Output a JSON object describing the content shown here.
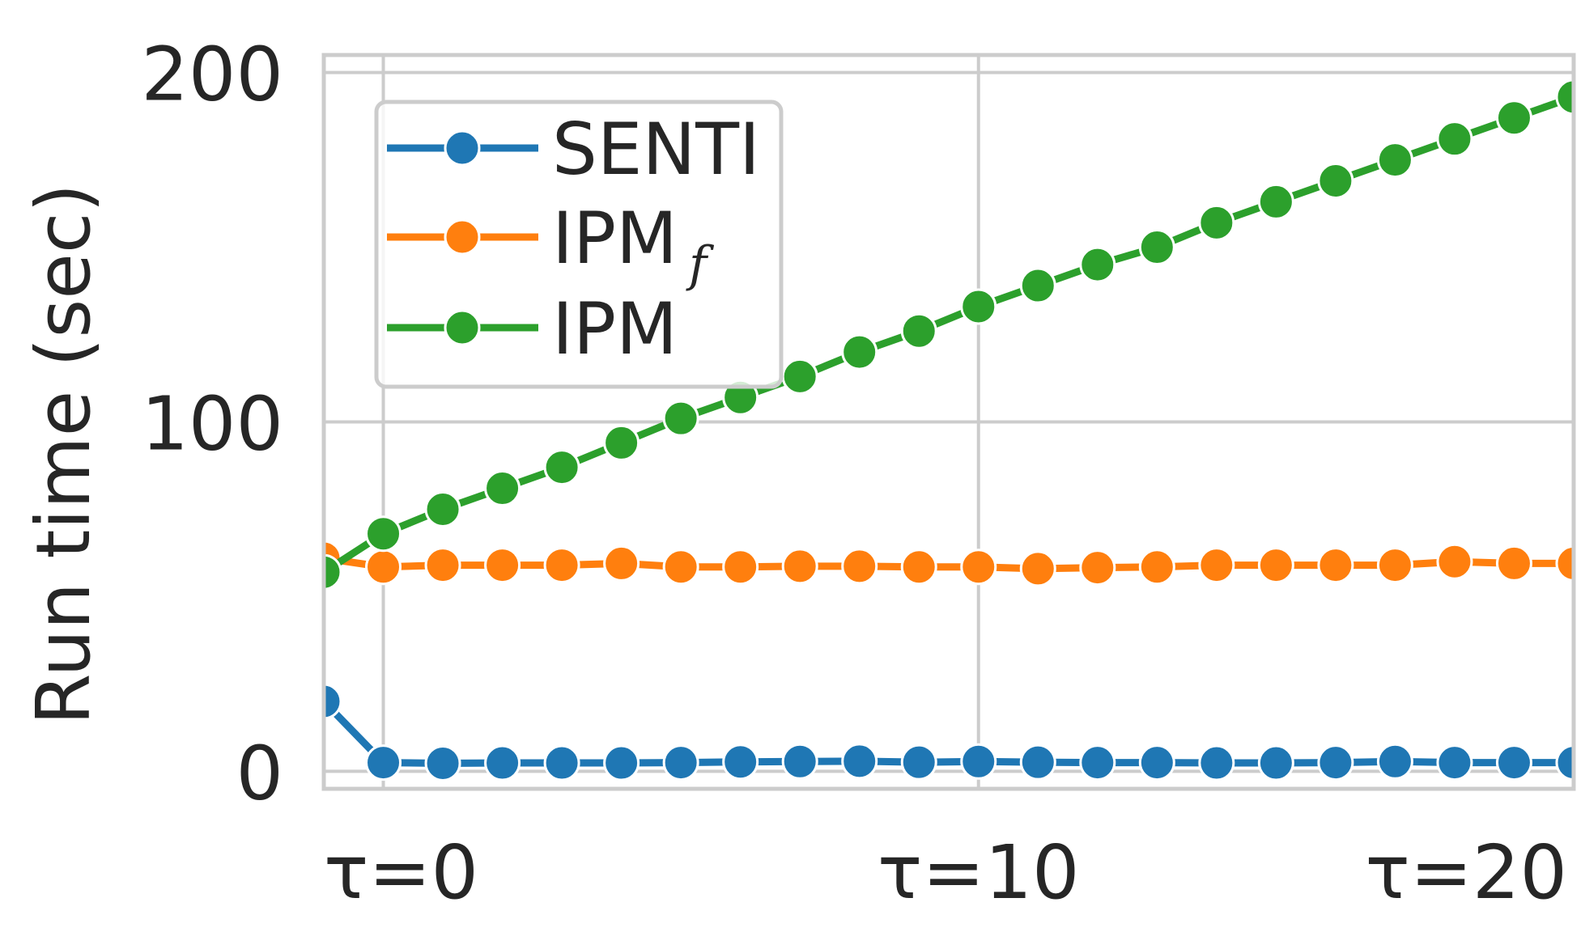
{
  "chart_data": {
    "type": "line",
    "xlabel": "",
    "ylabel": "Run time (sec)",
    "x": [
      -1,
      0,
      1,
      2,
      3,
      4,
      5,
      6,
      7,
      8,
      9,
      10,
      11,
      12,
      13,
      14,
      15,
      16,
      17,
      18,
      19,
      20
    ],
    "xlim": [
      -1,
      20
    ],
    "xticks": [
      0,
      10,
      20
    ],
    "xtick_labels": [
      "τ=0",
      "τ=10",
      "τ=20"
    ],
    "ylim": [
      -5,
      205
    ],
    "yticks": [
      0,
      100,
      200
    ],
    "ytick_labels": [
      "0",
      "100",
      "200"
    ],
    "grid": true,
    "legend_position": "top-left",
    "series": [
      {
        "name": "SENTI",
        "color": "#1f77b4",
        "values": [
          20,
          2.5,
          2.3,
          2.4,
          2.4,
          2.4,
          2.5,
          2.7,
          2.8,
          2.9,
          2.6,
          2.8,
          2.6,
          2.5,
          2.5,
          2.4,
          2.4,
          2.5,
          2.8,
          2.5,
          2.5,
          2.5
        ]
      },
      {
        "name": "IPM",
        "name_subscript": "f",
        "color": "#ff7f0e",
        "values": [
          61,
          58.5,
          59,
          59,
          59,
          59.5,
          58.5,
          58.5,
          58.7,
          58.7,
          58.5,
          58.5,
          58,
          58.3,
          58.5,
          59,
          59,
          59,
          59,
          60,
          59.5,
          59.5
        ]
      },
      {
        "name": "IPM",
        "color": "#2ca02c",
        "values": [
          57,
          68,
          75,
          81,
          87,
          94,
          101,
          107,
          113,
          120,
          126,
          133,
          139,
          145,
          150,
          157,
          163,
          169,
          175,
          181,
          187,
          193
        ]
      }
    ]
  }
}
